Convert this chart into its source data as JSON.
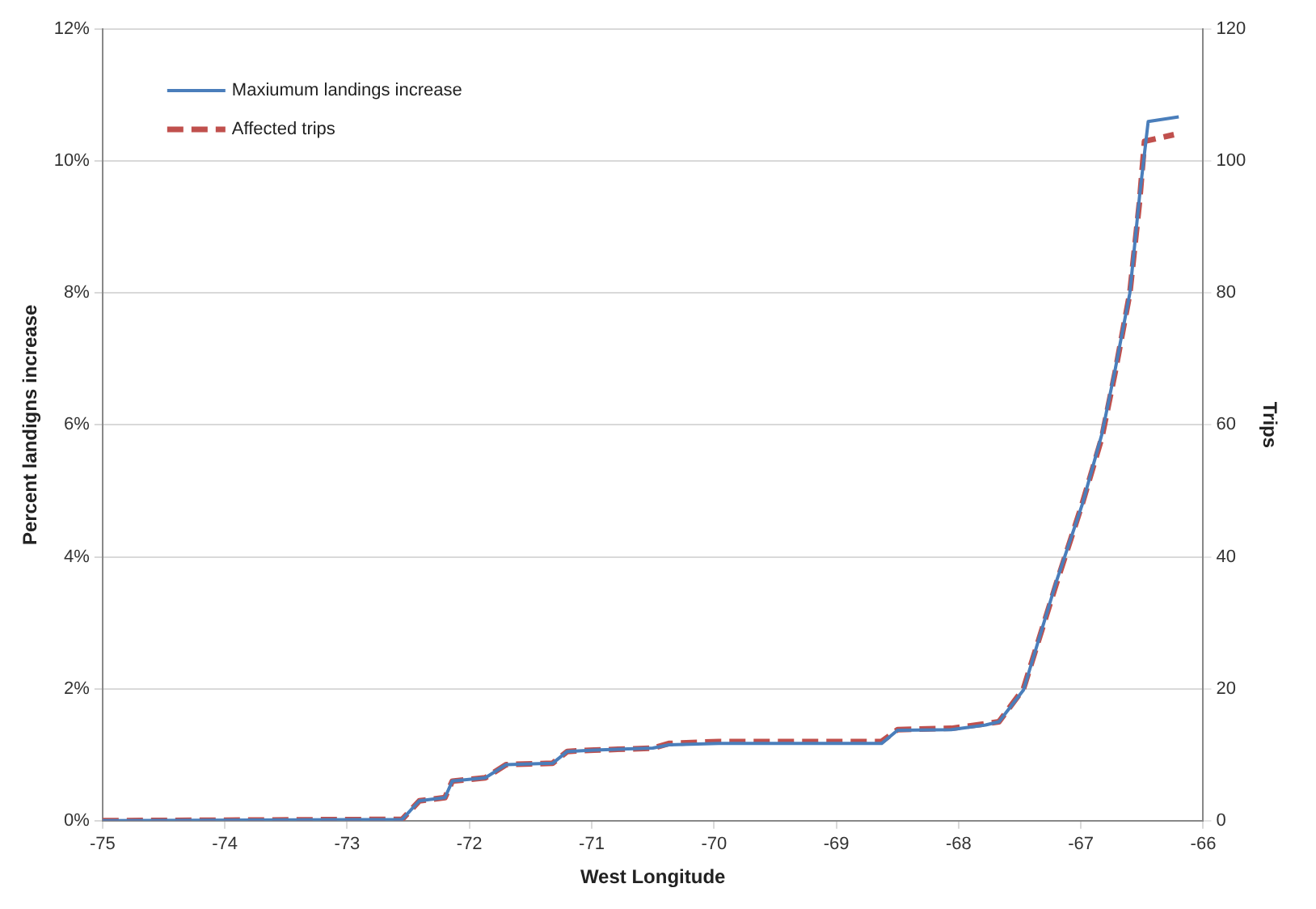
{
  "chart_data": {
    "type": "line",
    "xlabel": "West Longitude",
    "ylabel": "Percent landigns increase",
    "y2label": "Trips",
    "xlim": [
      -75,
      -66
    ],
    "xticks": [
      -75,
      -74,
      -73,
      -72,
      -71,
      -70,
      -69,
      -68,
      -67,
      -66
    ],
    "ylim": [
      0,
      12
    ],
    "yticks": [
      {
        "value": 0,
        "label": "0%"
      },
      {
        "value": 2,
        "label": "2%"
      },
      {
        "value": 4,
        "label": "4%"
      },
      {
        "value": 6,
        "label": "6%"
      },
      {
        "value": 8,
        "label": "8%"
      },
      {
        "value": 10,
        "label": "10%"
      },
      {
        "value": 12,
        "label": "12%"
      }
    ],
    "y2lim": [
      0,
      120
    ],
    "y2ticks": [
      0,
      20,
      40,
      60,
      80,
      100,
      120
    ],
    "grid": "y",
    "legend": "top left",
    "marker": "none",
    "series": [
      {
        "name": "Maxiumum landings increase",
        "color": "#4a7ebb",
        "line_style": "solid",
        "x": [
          -75,
          -72.55,
          -72.41,
          -72.2,
          -72.14,
          -71.87,
          -71.7,
          -71.32,
          -71.2,
          -70.98,
          -70.5,
          -70.37,
          -69.96,
          -68.63,
          -68.5,
          -68.06,
          -67.78,
          -67.67,
          -67.47,
          -67.2,
          -66.99,
          -66.83,
          -66.72,
          -66.6,
          -66.52,
          -66.45,
          -66.2
        ],
        "values": [
          0,
          0.02,
          0.3,
          0.35,
          0.6,
          0.65,
          0.85,
          0.87,
          1.05,
          1.07,
          1.1,
          1.15,
          1.17,
          1.17,
          1.37,
          1.38,
          1.45,
          1.5,
          1.98,
          3.63,
          4.79,
          5.85,
          6.84,
          8.0,
          9.48,
          10.6,
          10.67
        ]
      },
      {
        "name": "Affected trips",
        "color": "#c0504d",
        "line_style": "dashed",
        "axis": "y2",
        "x": [
          -75,
          -72.55,
          -72.41,
          -72.2,
          -72.14,
          -71.87,
          -71.7,
          -71.32,
          -71.2,
          -70.98,
          -70.5,
          -70.37,
          -69.96,
          -68.63,
          -68.5,
          -68.06,
          -67.78,
          -67.67,
          -67.47,
          -67.2,
          -66.99,
          -66.83,
          -66.72,
          -66.6,
          -66.52,
          -66.48,
          -66.24
        ],
        "values": [
          0,
          0.2,
          3,
          3.5,
          6,
          6.5,
          8.5,
          8.7,
          10.5,
          10.7,
          11,
          11.7,
          12,
          12,
          13.8,
          14,
          14.7,
          15,
          20,
          36,
          48,
          58,
          68,
          80,
          94,
          103,
          104
        ]
      }
    ]
  }
}
